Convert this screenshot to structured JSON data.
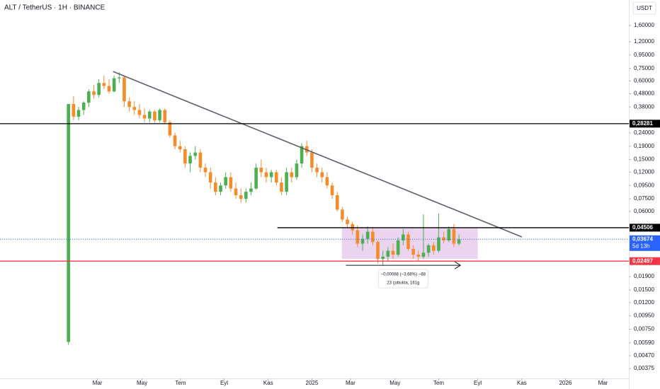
{
  "chart_data": {
    "type": "candlestick",
    "title": "ALT / TetherUS · 1H · BINANCE",
    "currency": "USDT",
    "up_color": "#4caf50",
    "down_color": "#f48c2a",
    "log_scale": true,
    "ylim": [
      0.00315,
      2.51
    ],
    "yticks": [
      {
        "value": 1.6,
        "label": "1,60000"
      },
      {
        "value": 1.2,
        "label": "1,20000"
      },
      {
        "value": 0.95,
        "label": "0,95000"
      },
      {
        "value": 0.75,
        "label": "0,75000"
      },
      {
        "value": 0.6,
        "label": "0,60000"
      },
      {
        "value": 0.48,
        "label": "0,48000"
      },
      {
        "value": 0.38,
        "label": "0,38000"
      },
      {
        "value": 0.24,
        "label": "0,24000"
      },
      {
        "value": 0.19,
        "label": "0,19000"
      },
      {
        "value": 0.15,
        "label": "0,15000"
      },
      {
        "value": 0.12,
        "label": "0,12000"
      },
      {
        "value": 0.095,
        "label": "0,09500"
      },
      {
        "value": 0.075,
        "label": "0,07500"
      },
      {
        "value": 0.06,
        "label": "0,06000"
      },
      {
        "value": 0.019,
        "label": "0,01900"
      },
      {
        "value": 0.015,
        "label": "0,01500"
      },
      {
        "value": 0.012,
        "label": "0,01200"
      },
      {
        "value": 0.0095,
        "label": "0,00950"
      },
      {
        "value": 0.0075,
        "label": "0,00750"
      },
      {
        "value": 0.0059,
        "label": "0,00590"
      },
      {
        "value": 0.0047,
        "label": "0,00470"
      },
      {
        "value": 0.00375,
        "label": "0,00375"
      }
    ],
    "xlim": [
      -13.5,
      110.5
    ],
    "xticks": [
      {
        "value": 5.7,
        "label": "Mar"
      },
      {
        "value": 14.5,
        "label": "May"
      },
      {
        "value": 22.1,
        "label": "Tem"
      },
      {
        "value": 30.7,
        "label": "Eyl"
      },
      {
        "value": 39.4,
        "label": "Kas"
      },
      {
        "value": 48.0,
        "label": "2025"
      },
      {
        "value": 55.6,
        "label": "Mar"
      },
      {
        "value": 64.4,
        "label": "May"
      },
      {
        "value": 73.0,
        "label": "Tem"
      },
      {
        "value": 80.7,
        "label": "Eyl"
      },
      {
        "value": 89.4,
        "label": "Kas"
      },
      {
        "value": 98.0,
        "label": "2026"
      },
      {
        "value": 105.4,
        "label": "Mar"
      }
    ],
    "candles": {
      "open": [
        0.006,
        0.4,
        0.32,
        0.36,
        0.41,
        0.5,
        0.47,
        0.58,
        0.55,
        0.5,
        0.63,
        0.64,
        0.42,
        0.38,
        0.36,
        0.33,
        0.31,
        0.35,
        0.3,
        0.36,
        0.29,
        0.23,
        0.19,
        0.18,
        0.14,
        0.16,
        0.17,
        0.13,
        0.12,
        0.1,
        0.085,
        0.095,
        0.11,
        0.09,
        0.08,
        0.075,
        0.085,
        0.09,
        0.13,
        0.12,
        0.11,
        0.12,
        0.1,
        0.085,
        0.12,
        0.11,
        0.14,
        0.19,
        0.17,
        0.13,
        0.12,
        0.11,
        0.095,
        0.08,
        0.062,
        0.052,
        0.048,
        0.043,
        0.034,
        0.037,
        0.042,
        0.035,
        0.026,
        0.027,
        0.03,
        0.028,
        0.036,
        0.04,
        0.031,
        0.028,
        0.027,
        0.029,
        0.033,
        0.03,
        0.038,
        0.036,
        0.044,
        0.034
      ],
      "high": [
        0.4,
        0.46,
        0.38,
        0.42,
        0.52,
        0.56,
        0.62,
        0.66,
        0.62,
        0.66,
        0.7,
        0.66,
        0.45,
        0.42,
        0.4,
        0.37,
        0.36,
        0.36,
        0.37,
        0.37,
        0.3,
        0.24,
        0.21,
        0.19,
        0.17,
        0.19,
        0.18,
        0.14,
        0.13,
        0.11,
        0.1,
        0.12,
        0.12,
        0.1,
        0.09,
        0.09,
        0.1,
        0.14,
        0.15,
        0.13,
        0.125,
        0.125,
        0.11,
        0.13,
        0.13,
        0.15,
        0.2,
        0.21,
        0.18,
        0.14,
        0.13,
        0.12,
        0.1,
        0.085,
        0.065,
        0.055,
        0.05,
        0.047,
        0.04,
        0.046,
        0.045,
        0.036,
        0.03,
        0.032,
        0.034,
        0.038,
        0.044,
        0.042,
        0.033,
        0.03,
        0.057,
        0.034,
        0.035,
        0.058,
        0.042,
        0.046,
        0.048,
        0.04
      ],
      "low": [
        0.0057,
        0.3,
        0.3,
        0.33,
        0.38,
        0.44,
        0.45,
        0.52,
        0.48,
        0.49,
        0.58,
        0.38,
        0.35,
        0.33,
        0.31,
        0.29,
        0.29,
        0.29,
        0.29,
        0.28,
        0.22,
        0.18,
        0.17,
        0.13,
        0.12,
        0.15,
        0.12,
        0.11,
        0.09,
        0.08,
        0.08,
        0.09,
        0.085,
        0.075,
        0.07,
        0.07,
        0.08,
        0.088,
        0.11,
        0.1,
        0.1,
        0.095,
        0.08,
        0.08,
        0.1,
        0.105,
        0.13,
        0.16,
        0.12,
        0.11,
        0.1,
        0.09,
        0.075,
        0.06,
        0.05,
        0.045,
        0.04,
        0.032,
        0.03,
        0.034,
        0.033,
        0.024,
        0.023,
        0.025,
        0.026,
        0.027,
        0.033,
        0.03,
        0.026,
        0.025,
        0.026,
        0.027,
        0.028,
        0.029,
        0.034,
        0.035,
        0.032,
        0.033
      ],
      "close": [
        0.4,
        0.32,
        0.36,
        0.41,
        0.5,
        0.47,
        0.58,
        0.55,
        0.5,
        0.63,
        0.64,
        0.42,
        0.38,
        0.36,
        0.33,
        0.31,
        0.35,
        0.3,
        0.36,
        0.29,
        0.23,
        0.19,
        0.18,
        0.14,
        0.16,
        0.17,
        0.13,
        0.12,
        0.1,
        0.085,
        0.095,
        0.11,
        0.09,
        0.08,
        0.075,
        0.085,
        0.09,
        0.13,
        0.12,
        0.11,
        0.12,
        0.1,
        0.085,
        0.12,
        0.11,
        0.14,
        0.19,
        0.17,
        0.13,
        0.12,
        0.11,
        0.095,
        0.08,
        0.062,
        0.052,
        0.048,
        0.043,
        0.034,
        0.037,
        0.042,
        0.035,
        0.026,
        0.027,
        0.03,
        0.028,
        0.036,
        0.04,
        0.031,
        0.028,
        0.027,
        0.029,
        0.033,
        0.03,
        0.038,
        0.036,
        0.044,
        0.034,
        0.0367
      ]
    },
    "levels": [
      {
        "value": 0.28281,
        "label": "0,28281",
        "color": "#000000"
      },
      {
        "value": 0.04506,
        "label": "0,04506",
        "color": "#000000",
        "x_start": 41.2
      },
      {
        "value": 0.03674,
        "label": "0,03674",
        "color": "#2962ff",
        "style": "dotted",
        "countdown": "5d 13h"
      },
      {
        "value": 0.02497,
        "label": "0,02497",
        "color": "#f23645"
      }
    ],
    "trendline": {
      "x": [
        8.8,
        89.4
      ],
      "y": [
        0.71,
        0.0383
      ],
      "color": "#5d606b"
    },
    "range_box": {
      "x": [
        53.9,
        80.7
      ],
      "y": [
        0.026,
        0.04506
      ],
      "color": "#9c27b0"
    },
    "measure": {
      "x": [
        54.7,
        77.3
      ],
      "y": 0.0232,
      "text": [
        "−0,00088 (−3,68%) −88",
        "23 çubukta, 161g"
      ]
    }
  }
}
